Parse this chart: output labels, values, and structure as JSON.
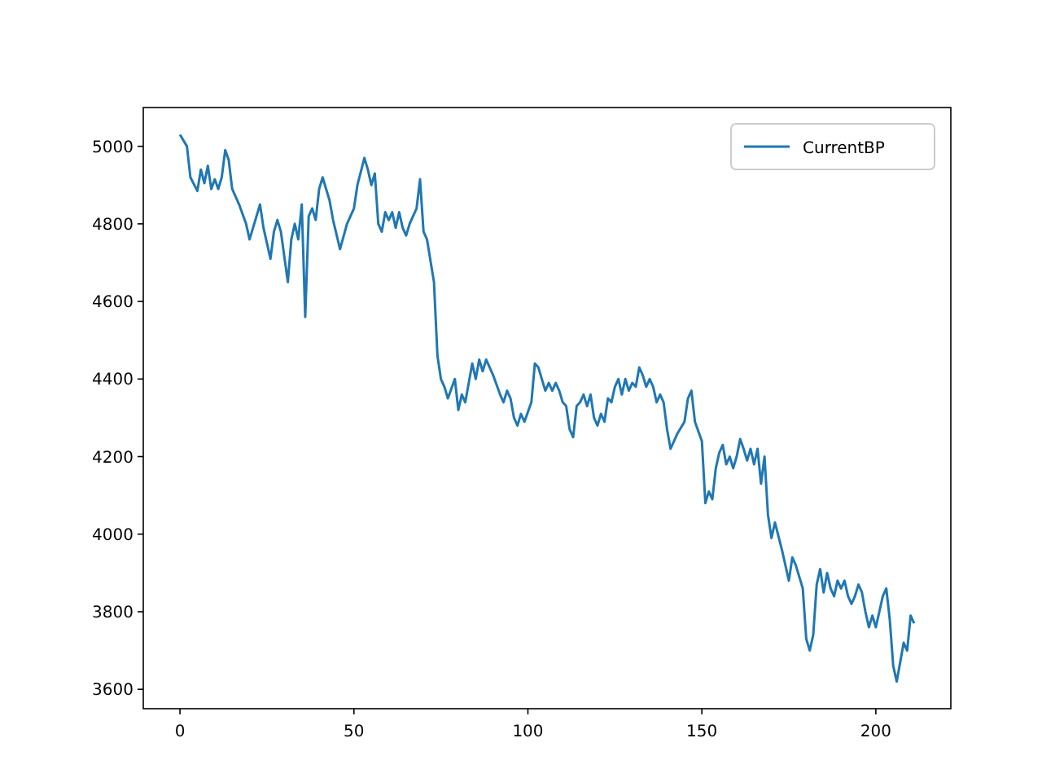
{
  "chart_data": {
    "type": "line",
    "legend": "top right",
    "xlim": [
      -10.55,
      221.55
    ],
    "ylim": [
      3550,
      5100
    ],
    "xticks": [
      0,
      50,
      100,
      150,
      200
    ],
    "yticks": [
      3600,
      3800,
      4000,
      4200,
      4400,
      4600,
      4800,
      5000
    ],
    "series": [
      {
        "name": "CurrentBP",
        "color": "#1f77b4",
        "x": [
          0,
          2,
          3,
          5,
          6,
          7,
          8,
          9,
          10,
          11,
          12,
          13,
          14,
          15,
          17,
          19,
          20,
          22,
          23,
          24,
          26,
          27,
          28,
          29,
          31,
          32,
          33,
          34,
          35,
          36,
          37,
          38,
          39,
          40,
          41,
          43,
          44,
          46,
          48,
          50,
          51,
          53,
          54,
          55,
          56,
          57,
          58,
          59,
          60,
          61,
          62,
          63,
          64,
          65,
          66,
          68,
          69,
          70,
          71,
          73,
          74,
          75,
          76,
          77,
          79,
          80,
          81,
          82,
          84,
          85,
          86,
          87,
          88,
          90,
          92,
          93,
          94,
          95,
          96,
          97,
          98,
          99,
          101,
          102,
          103,
          105,
          106,
          107,
          108,
          109,
          110,
          111,
          112,
          113,
          114,
          115,
          116,
          117,
          118,
          119,
          120,
          121,
          122,
          123,
          124,
          125,
          126,
          127,
          128,
          129,
          130,
          131,
          132,
          133,
          134,
          135,
          136,
          137,
          138,
          139,
          140,
          141,
          143,
          145,
          146,
          147,
          148,
          150,
          151,
          152,
          153,
          154,
          155,
          156,
          157,
          158,
          159,
          160,
          161,
          162,
          163,
          164,
          165,
          166,
          167,
          168,
          169,
          170,
          171,
          173,
          175,
          176,
          177,
          179,
          180,
          181,
          182,
          183,
          184,
          185,
          186,
          187,
          188,
          189,
          190,
          191,
          192,
          193,
          194,
          195,
          196,
          197,
          198,
          199,
          200,
          201,
          202,
          203,
          204,
          205,
          206,
          207,
          208,
          209,
          210,
          211
        ],
        "values": [
          5030,
          5000,
          4920,
          4885,
          4940,
          4905,
          4950,
          4890,
          4915,
          4890,
          4920,
          4990,
          4965,
          4890,
          4850,
          4800,
          4760,
          4820,
          4850,
          4790,
          4710,
          4780,
          4810,
          4780,
          4650,
          4760,
          4800,
          4760,
          4850,
          4560,
          4820,
          4840,
          4810,
          4890,
          4920,
          4860,
          4810,
          4735,
          4800,
          4840,
          4900,
          4970,
          4940,
          4900,
          4930,
          4800,
          4780,
          4830,
          4810,
          4830,
          4790,
          4830,
          4790,
          4770,
          4800,
          4840,
          4915,
          4780,
          4760,
          4650,
          4460,
          4400,
          4380,
          4350,
          4400,
          4320,
          4360,
          4340,
          4440,
          4400,
          4450,
          4420,
          4450,
          4410,
          4360,
          4340,
          4370,
          4350,
          4300,
          4280,
          4310,
          4290,
          4340,
          4440,
          4430,
          4370,
          4390,
          4370,
          4390,
          4370,
          4340,
          4330,
          4270,
          4250,
          4330,
          4340,
          4360,
          4330,
          4360,
          4300,
          4280,
          4310,
          4290,
          4350,
          4340,
          4380,
          4400,
          4360,
          4400,
          4370,
          4390,
          4380,
          4430,
          4410,
          4380,
          4400,
          4380,
          4340,
          4360,
          4340,
          4270,
          4220,
          4260,
          4290,
          4350,
          4370,
          4290,
          4240,
          4080,
          4110,
          4090,
          4170,
          4210,
          4230,
          4180,
          4200,
          4170,
          4200,
          4245,
          4220,
          4190,
          4220,
          4180,
          4220,
          4130,
          4200,
          4050,
          3990,
          4030,
          3960,
          3880,
          3940,
          3920,
          3860,
          3730,
          3700,
          3740,
          3870,
          3910,
          3850,
          3900,
          3860,
          3840,
          3880,
          3860,
          3880,
          3840,
          3820,
          3840,
          3870,
          3850,
          3800,
          3760,
          3790,
          3760,
          3800,
          3840,
          3860,
          3780,
          3660,
          3620,
          3670,
          3720,
          3700,
          3790,
          3770
        ]
      }
    ]
  }
}
